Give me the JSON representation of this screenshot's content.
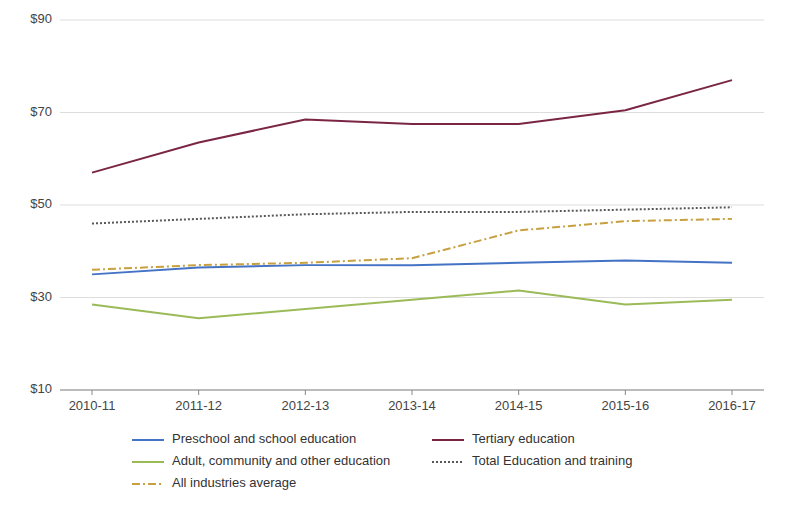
{
  "chart_data": {
    "type": "line",
    "categories": [
      "2010-11",
      "2011-12",
      "2012-13",
      "2013-14",
      "2014-15",
      "2015-16",
      "2016-17"
    ],
    "series": [
      {
        "name": "Preschool and school education",
        "color": "#4472C4",
        "line_style": "solid",
        "values": [
          35.0,
          36.5,
          37.0,
          37.0,
          37.5,
          38.0,
          37.5
        ]
      },
      {
        "name": "Tertiary education",
        "color": "#7B2545",
        "line_style": "solid",
        "values": [
          57.0,
          63.5,
          68.5,
          67.5,
          67.5,
          70.5,
          77.0
        ]
      },
      {
        "name": "Adult, community and other education",
        "color": "#9BBB59",
        "line_style": "solid",
        "values": [
          28.5,
          25.5,
          27.5,
          29.5,
          31.5,
          28.5,
          29.5
        ]
      },
      {
        "name": "Total Education and training",
        "color": "#595959",
        "line_style": "dotted",
        "values": [
          46.0,
          47.0,
          48.0,
          48.5,
          48.5,
          49.0,
          49.5
        ]
      },
      {
        "name": "All industries average",
        "color": "#C9A040",
        "line_style": "dashdot",
        "values": [
          36.0,
          37.0,
          37.5,
          38.5,
          44.5,
          46.5,
          47.0
        ]
      }
    ],
    "ylim": [
      10,
      90
    ],
    "yticks": [
      {
        "value": 10,
        "label": "$10"
      },
      {
        "value": 30,
        "label": "$30"
      },
      {
        "value": 50,
        "label": "$50"
      },
      {
        "value": 70,
        "label": "$70"
      },
      {
        "value": 90,
        "label": "$90"
      }
    ],
    "grid": true,
    "legend": "bottom"
  }
}
